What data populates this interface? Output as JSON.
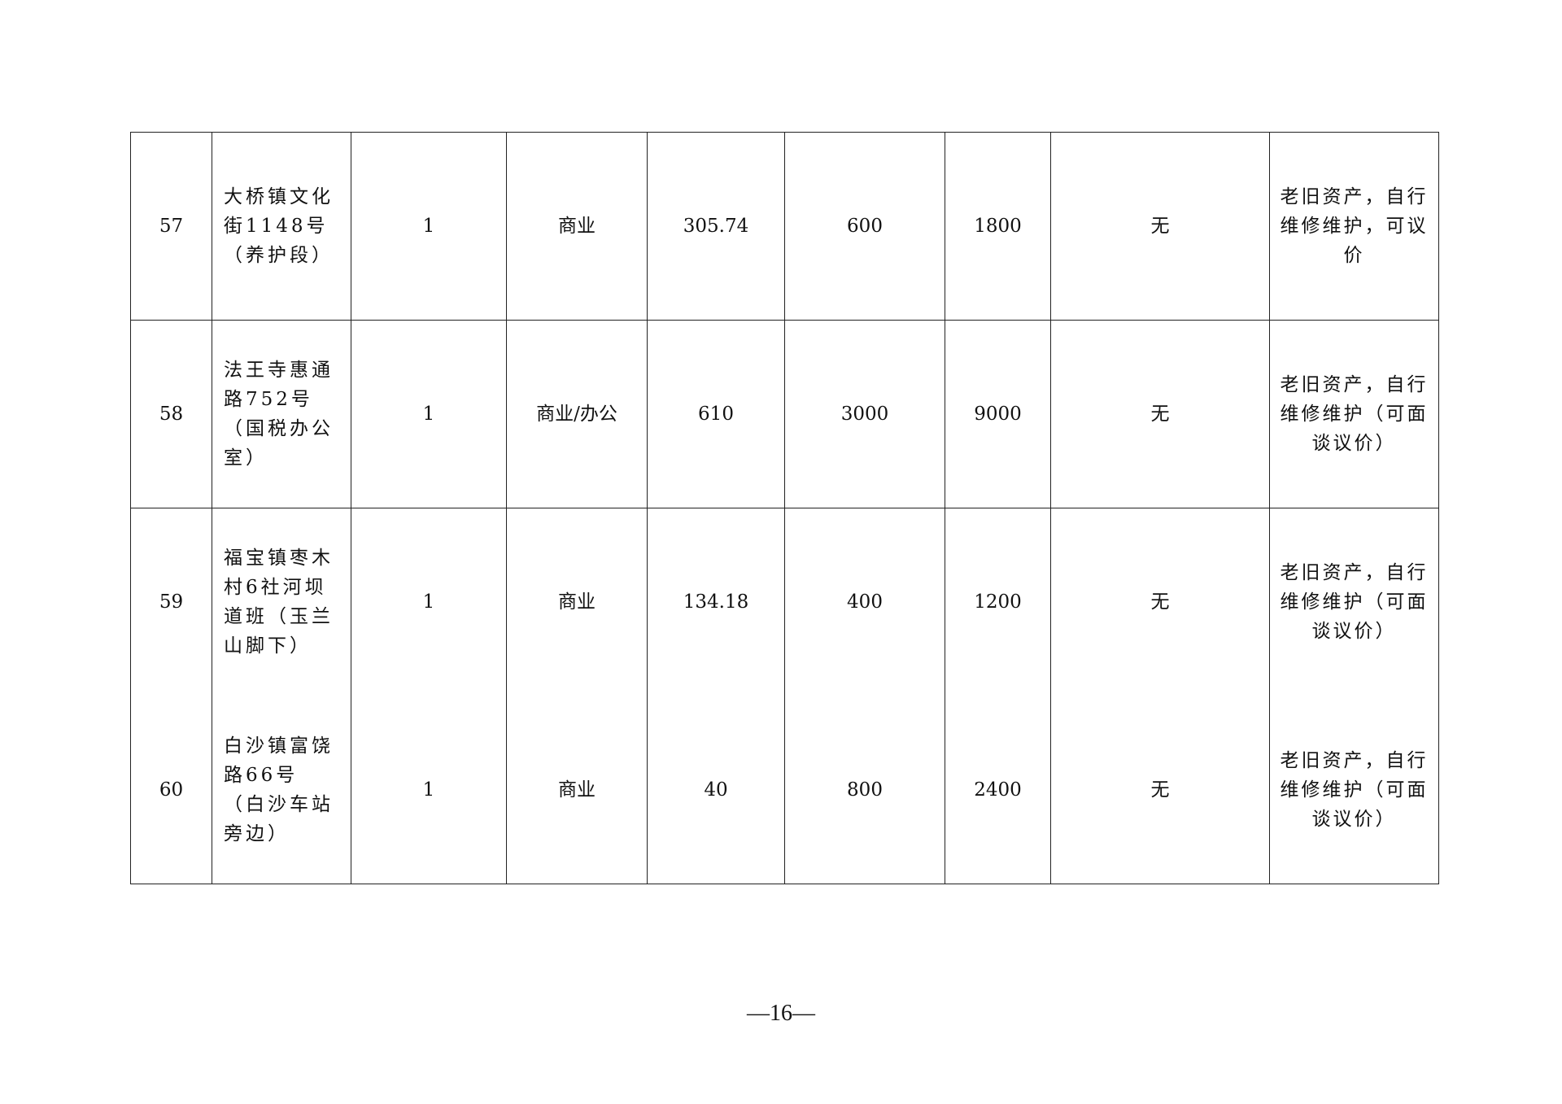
{
  "rows": [
    {
      "no": "57",
      "address": "大桥镇文化街1148号（养护段）",
      "count": "1",
      "use": "商业",
      "area": "305.74",
      "price": "600",
      "deposit": "1800",
      "encumbrance": "无",
      "note": "老旧资产，自行维修维护，可议价"
    },
    {
      "no": "58",
      "address": "法王寺惠通路752号（国税办公室）",
      "count": "1",
      "use": "商业/办公",
      "area": "610",
      "price": "3000",
      "deposit": "9000",
      "encumbrance": "无",
      "note": "老旧资产，自行维修维护（可面谈议价）"
    },
    {
      "no": "59",
      "address": "福宝镇枣木村6社河坝道班（玉兰山脚下）",
      "count": "1",
      "use": "商业",
      "area": "134.18",
      "price": "400",
      "deposit": "1200",
      "encumbrance": "无",
      "note": "老旧资产，自行维修维护（可面谈议价）"
    },
    {
      "no": "60",
      "address": "白沙镇富饶路66号（白沙车站旁边）",
      "count": "1",
      "use": "商业",
      "area": "40",
      "price": "800",
      "deposit": "2400",
      "encumbrance": "无",
      "note": "老旧资产，自行维修维护（可面谈议价）"
    }
  ],
  "page_number": "—16—"
}
